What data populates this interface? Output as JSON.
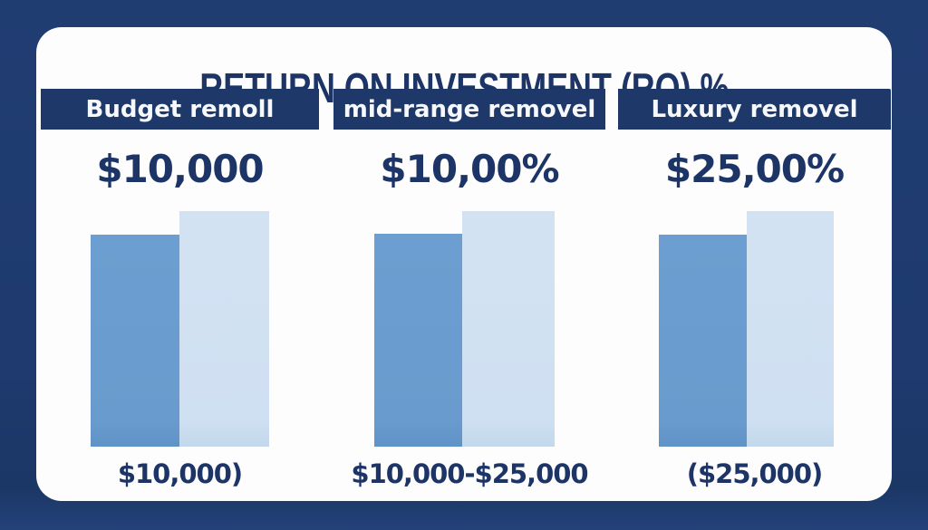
{
  "title": "RETURN ON INVESTMENT (RO) %",
  "colors": {
    "background_navy": "#1e3a6e",
    "card_white": "#fdfdfe",
    "banner_navy": "#1d3869",
    "ink_navy": "#1d3467",
    "bar_dark_blue": "#699bce",
    "bar_light_blue": "#cfe0f2"
  },
  "columns": [
    {
      "header": "Budget remoll",
      "value": "$10,000",
      "range": "$10,000)"
    },
    {
      "header": "mid-range removel",
      "value": "$10,00%",
      "range": "$10,000-$25,000"
    },
    {
      "header": "Luxury removel",
      "value": "$25,00%",
      "range": "($25,000)"
    }
  ],
  "chart_data": {
    "type": "bar",
    "title": "RETURN ON INVESTMENT (RO) %",
    "categories": [
      "Budget remoll",
      "mid-range removel",
      "Luxury removel"
    ],
    "series": [
      {
        "name": "dark-blue-bar",
        "values": [
          234,
          235,
          234
        ]
      },
      {
        "name": "light-blue-bar",
        "values": [
          260,
          260,
          260
        ]
      }
    ],
    "value_labels": [
      "$10,000",
      "$10,00%",
      "$25,00%"
    ],
    "range_labels": [
      "$10,000)",
      "$10,000-$25,000",
      "($25,000)"
    ],
    "xlabel": "",
    "ylabel": "",
    "axis_note": "no numeric axis shown; values are pictographic bar heights in px, baseline shared",
    "legend": "none",
    "grid": false
  }
}
